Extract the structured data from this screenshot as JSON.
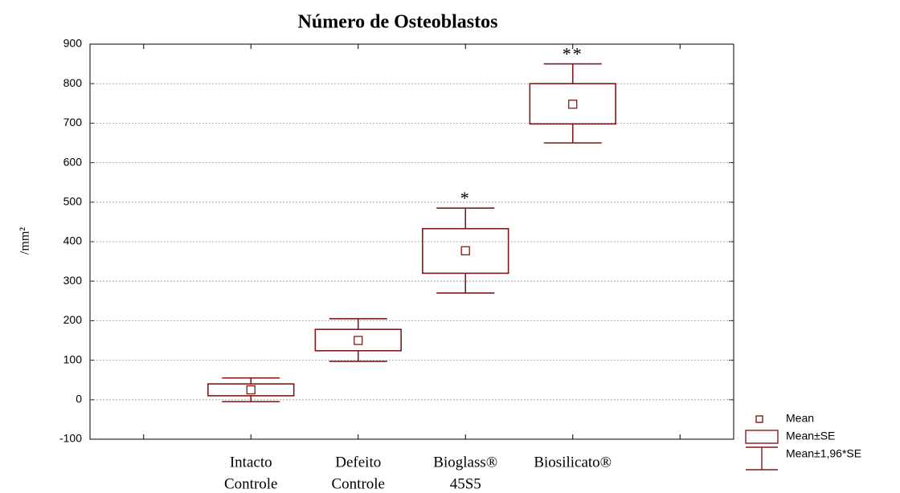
{
  "chart_data": {
    "type": "box",
    "title": "Número de Osteoblastos",
    "y_label": "/mm²",
    "categories": [
      [
        "Intacto",
        "Controle"
      ],
      [
        "Defeito",
        "Controle"
      ],
      [
        "Bioglass®",
        "45S5"
      ],
      [
        "Biosilicato®"
      ]
    ],
    "color": "#7f1a1a",
    "mean": [
      25,
      150,
      377,
      748
    ],
    "se_low": [
      10,
      124,
      320,
      698
    ],
    "se_high": [
      40,
      178,
      433,
      800
    ],
    "ci_low": [
      -5,
      97,
      270,
      650
    ],
    "ci_high": [
      55,
      205,
      485,
      850
    ],
    "annotations": [
      null,
      null,
      "*",
      "**"
    ],
    "ylim": [
      -100,
      900
    ],
    "yticks": [
      -100,
      0,
      100,
      200,
      300,
      400,
      500,
      600,
      700,
      800,
      900
    ],
    "grid": true,
    "legend": [
      "Mean",
      "Mean±SE",
      "Mean±1,96*SE"
    ],
    "legend_position": "bottom-right"
  }
}
